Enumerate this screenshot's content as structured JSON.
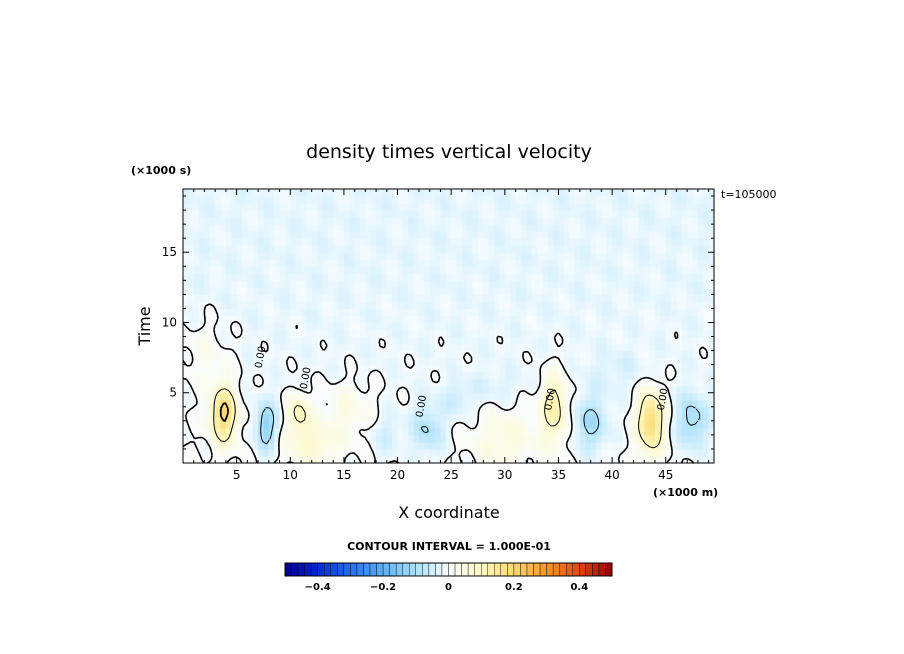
{
  "chart_data": {
    "type": "heatmap",
    "title": "density times vertical velocity",
    "xlabel": "X coordinate",
    "ylabel": "Time",
    "x_unit_label": "(×1000 m)",
    "y_unit_label": "(×1000 s)",
    "time_stamp": "t=105000",
    "xlim": [
      0,
      49.5
    ],
    "ylim": [
      0,
      19.5
    ],
    "x_ticks": [
      5,
      10,
      15,
      20,
      25,
      30,
      35,
      40,
      45
    ],
    "y_ticks": [
      5,
      10,
      15
    ],
    "contour_interval_label": "CONTOUR INTERVAL = 1.000E-01",
    "contour_interval": 0.1,
    "colorbar": {
      "range": [
        -0.5,
        0.5
      ],
      "tick_values": [
        -0.4,
        -0.2,
        0,
        0.2,
        0.4
      ],
      "tick_labels": [
        "−0.4",
        "−0.2",
        "0",
        "0.2",
        "0.4"
      ]
    },
    "contour_labels": [
      {
        "x": 7.5,
        "y": 7.5,
        "text": "0.00"
      },
      {
        "x": 11.7,
        "y": 6.0,
        "text": "0.00"
      },
      {
        "x": 22.5,
        "y": 4.0,
        "text": "0.00"
      },
      {
        "x": 34.5,
        "y": 4.5,
        "text": "0.00"
      },
      {
        "x": 45.0,
        "y": 4.5,
        "text": "0.00"
      }
    ],
    "features": [
      {
        "x": 3.8,
        "y": 3.5,
        "sx": 1.2,
        "sy": 2.0,
        "amp": 0.22
      },
      {
        "x": 10.8,
        "y": 3.6,
        "sx": 1.0,
        "sy": 1.3,
        "amp": 0.12
      },
      {
        "x": 12.0,
        "y": 1.5,
        "sx": 2.6,
        "sy": 1.5,
        "amp": 0.08
      },
      {
        "x": 15.5,
        "y": 4.0,
        "sx": 2.2,
        "sy": 1.8,
        "amp": 0.05
      },
      {
        "x": 7.8,
        "y": 2.6,
        "sx": 1.1,
        "sy": 1.8,
        "amp": -0.14
      },
      {
        "x": 22.8,
        "y": 2.4,
        "sx": 1.5,
        "sy": 1.8,
        "amp": -0.1
      },
      {
        "x": 19.0,
        "y": 2.0,
        "sx": 1.5,
        "sy": 1.5,
        "amp": -0.05
      },
      {
        "x": 25.5,
        "y": 4.5,
        "sx": 1.4,
        "sy": 1.2,
        "amp": -0.05
      },
      {
        "x": 30.0,
        "y": 1.8,
        "sx": 2.8,
        "sy": 2.0,
        "amp": 0.06
      },
      {
        "x": 34.6,
        "y": 4.0,
        "sx": 1.3,
        "sy": 2.4,
        "amp": 0.14
      },
      {
        "x": 38.0,
        "y": 2.8,
        "sx": 1.6,
        "sy": 2.0,
        "amp": -0.11
      },
      {
        "x": 43.6,
        "y": 3.0,
        "sx": 1.2,
        "sy": 2.2,
        "amp": 0.22
      },
      {
        "x": 47.5,
        "y": 3.0,
        "sx": 1.5,
        "sy": 2.0,
        "amp": -0.12
      },
      {
        "x": 40.5,
        "y": 6.5,
        "sx": 3.0,
        "sy": 1.5,
        "amp": -0.03
      },
      {
        "x": 29.0,
        "y": 5.5,
        "sx": 3.0,
        "sy": 1.2,
        "amp": -0.03
      },
      {
        "x": 2.0,
        "y": 8.0,
        "sx": 2.5,
        "sy": 2.5,
        "amp": 0.04
      }
    ]
  }
}
